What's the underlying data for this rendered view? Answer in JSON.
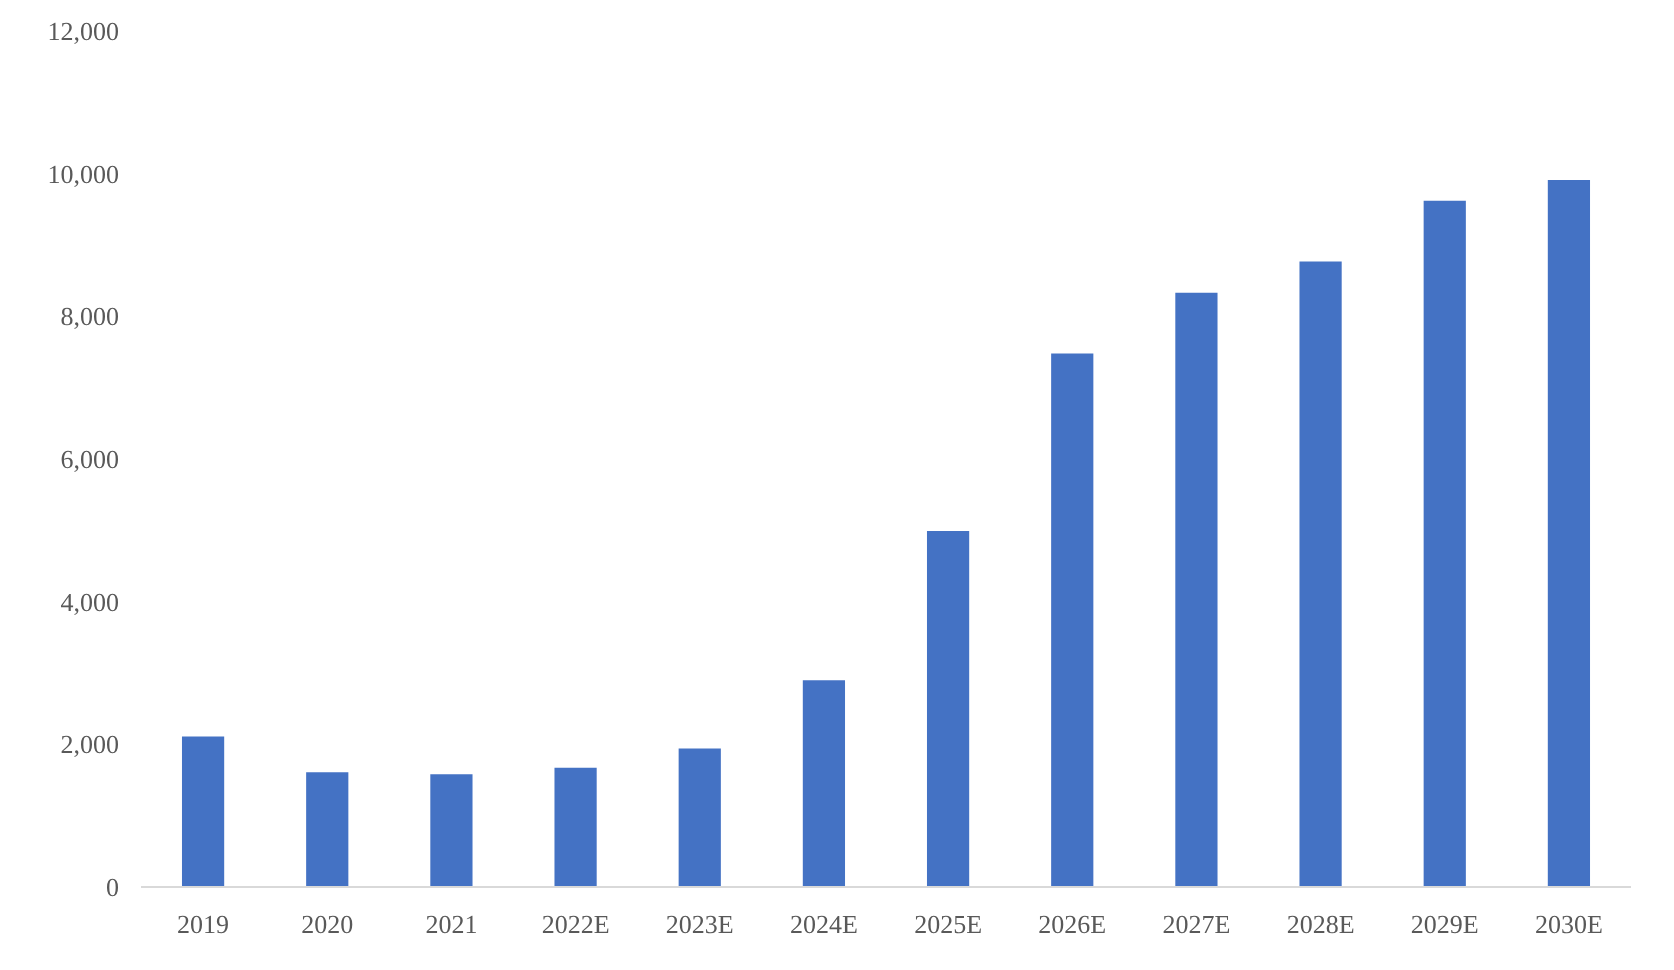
{
  "chart_data": {
    "type": "bar",
    "categories": [
      "2019",
      "2020",
      "2021",
      "2022E",
      "2023E",
      "2024E",
      "2025E",
      "2026E",
      "2027E",
      "2028E",
      "2029E",
      "2030E"
    ],
    "values": [
      2110,
      1610,
      1580,
      1670,
      1940,
      2900,
      4990,
      7480,
      8330,
      8770,
      9620,
      9910
    ],
    "color": "#4472c4",
    "ylim": [
      0,
      12000
    ],
    "yticks": [
      0,
      {
        "value": 2000,
        "label": "2,000"
      },
      {
        "value": 4000,
        "label": "4,000"
      },
      {
        "value": 6000,
        "label": "6,000"
      },
      {
        "value": 8000,
        "label": "8,000"
      },
      {
        "value": 10000,
        "label": "10,000"
      },
      {
        "value": 12000,
        "label": "12,000"
      }
    ],
    "grid": false
  }
}
